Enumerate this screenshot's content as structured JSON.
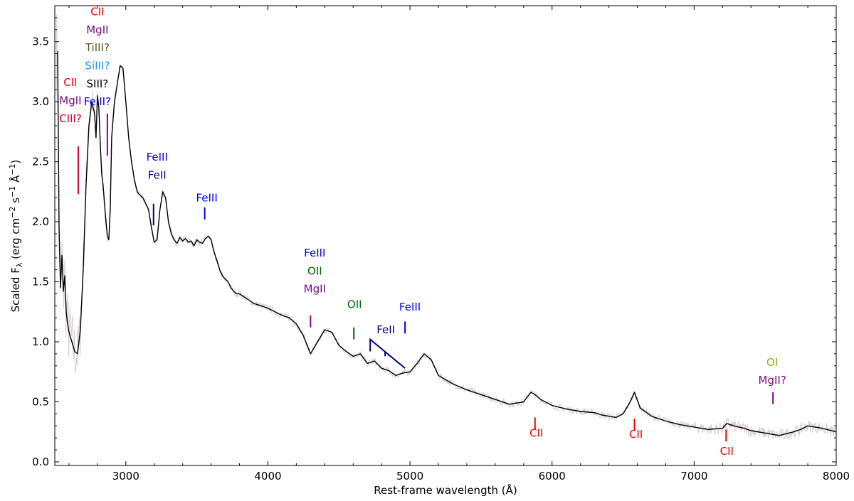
{
  "chart_data": {
    "type": "line",
    "title": "",
    "xlabel": "Rest-frame wavelength (Å)",
    "ylabel_main": "Scaled F",
    "ylabel_sub": "λ",
    "ylabel_units": " (erg cm",
    "ylabel_exp1": "−2",
    "ylabel_mid": " s",
    "ylabel_exp2": "−1",
    "ylabel_mid2": " Å",
    "ylabel_exp3": "−1",
    "ylabel_end": ")",
    "xlim": [
      2500,
      8000
    ],
    "ylim": [
      -0.03,
      3.8
    ],
    "xticks": [
      3000,
      4000,
      5000,
      6000,
      7000,
      8000
    ],
    "yticks": [
      0.0,
      0.5,
      1.0,
      1.5,
      2.0,
      2.5,
      3.0,
      3.5
    ],
    "grid": false,
    "series": [
      {
        "style": "smoothed",
        "color": "#000000",
        "x": [
          2520,
          2530,
          2540,
          2550,
          2560,
          2570,
          2580,
          2590,
          2600,
          2620,
          2640,
          2660,
          2680,
          2700,
          2720,
          2740,
          2760,
          2780,
          2790,
          2800,
          2810,
          2820,
          2830,
          2840,
          2850,
          2860,
          2870,
          2880,
          2890,
          2900,
          2920,
          2940,
          2960,
          2980,
          3000,
          3020,
          3040,
          3060,
          3080,
          3100,
          3120,
          3140,
          3160,
          3180,
          3200,
          3220,
          3240,
          3260,
          3280,
          3300,
          3320,
          3340,
          3360,
          3380,
          3400,
          3420,
          3440,
          3460,
          3480,
          3500,
          3520,
          3540,
          3560,
          3580,
          3600,
          3620,
          3640,
          3660,
          3680,
          3700,
          3720,
          3740,
          3760,
          3780,
          3800,
          3850,
          3900,
          3950,
          4000,
          4050,
          4100,
          4150,
          4200,
          4250,
          4300,
          4350,
          4400,
          4450,
          4500,
          4550,
          4600,
          4650,
          4700,
          4750,
          4800,
          4850,
          4900,
          4950,
          5000,
          5050,
          5100,
          5150,
          5200,
          5300,
          5400,
          5500,
          5600,
          5700,
          5800,
          5850,
          5880,
          5920,
          6000,
          6100,
          6200,
          6300,
          6350,
          6400,
          6450,
          6500,
          6550,
          6580,
          6620,
          6700,
          6800,
          6900,
          7000,
          7100,
          7200,
          7230,
          7280,
          7350,
          7400,
          7500,
          7600,
          7700,
          7750,
          7800,
          7900,
          8000
        ],
        "y": [
          3.42,
          1.95,
          1.45,
          1.72,
          1.42,
          1.55,
          1.25,
          1.15,
          1.08,
          1.0,
          0.92,
          0.9,
          1.1,
          1.6,
          2.3,
          2.8,
          3.0,
          2.9,
          2.7,
          3.05,
          2.95,
          2.65,
          2.4,
          2.3,
          2.15,
          2.0,
          1.88,
          1.85,
          2.1,
          2.7,
          3.0,
          3.15,
          3.3,
          3.28,
          3.0,
          2.7,
          2.5,
          2.35,
          2.25,
          2.22,
          2.2,
          2.15,
          2.1,
          1.95,
          1.83,
          1.85,
          2.1,
          2.25,
          2.2,
          2.0,
          1.9,
          1.85,
          1.82,
          1.87,
          1.84,
          1.86,
          1.83,
          1.84,
          1.8,
          1.85,
          1.83,
          1.82,
          1.86,
          1.88,
          1.85,
          1.75,
          1.68,
          1.6,
          1.55,
          1.52,
          1.5,
          1.45,
          1.42,
          1.4,
          1.4,
          1.36,
          1.32,
          1.3,
          1.28,
          1.25,
          1.22,
          1.2,
          1.15,
          1.05,
          0.9,
          1.0,
          1.1,
          1.08,
          0.97,
          0.92,
          0.88,
          0.9,
          0.82,
          0.84,
          0.78,
          0.76,
          0.72,
          0.74,
          0.75,
          0.82,
          0.9,
          0.85,
          0.72,
          0.65,
          0.6,
          0.56,
          0.52,
          0.48,
          0.5,
          0.58,
          0.56,
          0.52,
          0.47,
          0.44,
          0.42,
          0.41,
          0.39,
          0.38,
          0.37,
          0.4,
          0.5,
          0.58,
          0.45,
          0.38,
          0.34,
          0.31,
          0.29,
          0.27,
          0.28,
          0.32,
          0.3,
          0.28,
          0.26,
          0.24,
          0.22,
          0.25,
          0.27,
          0.3,
          0.28,
          0.25
        ]
      }
    ],
    "annotations": [
      {
        "text": "CII",
        "color": "#ee0000",
        "wl": 2610,
        "y": 3.13
      },
      {
        "text": "MgII",
        "color": "#7a0a80",
        "wl": 2610,
        "y": 2.98
      },
      {
        "text": "CIII?",
        "color": "#cc0033",
        "wl": 2610,
        "y": 2.83
      },
      {
        "text": "CII",
        "color": "#ee0000",
        "wl": 2800,
        "y": 3.72
      },
      {
        "text": "MgII",
        "color": "#7a0a80",
        "wl": 2800,
        "y": 3.57
      },
      {
        "text": "TiIII?",
        "color": "#555522",
        "wl": 2800,
        "y": 3.42
      },
      {
        "text": "SiIII?",
        "color": "#1e90ff",
        "wl": 2800,
        "y": 3.27
      },
      {
        "text": "SIII?",
        "color": "#000000",
        "wl": 2800,
        "y": 3.12
      },
      {
        "text": "FeIII?",
        "color": "#0000ee",
        "wl": 2800,
        "y": 2.97
      },
      {
        "text": "FeIII",
        "color": "#0000ee",
        "wl": 3220,
        "y": 2.51
      },
      {
        "text": "FeII",
        "color": "#000080",
        "wl": 3220,
        "y": 2.36
      },
      {
        "text": "FeIII",
        "color": "#0000ee",
        "wl": 3570,
        "y": 2.17
      },
      {
        "text": "FeIII",
        "color": "#0000ee",
        "wl": 4330,
        "y": 1.71
      },
      {
        "text": "OII",
        "color": "#006400",
        "wl": 4330,
        "y": 1.56
      },
      {
        "text": "MgII",
        "color": "#7a0a80",
        "wl": 4330,
        "y": 1.41
      },
      {
        "text": "OII",
        "color": "#006400",
        "wl": 4610,
        "y": 1.28
      },
      {
        "text": "FeII",
        "color": "#000080",
        "wl": 4830,
        "y": 1.07
      },
      {
        "text": "FeIII",
        "color": "#0000ee",
        "wl": 5000,
        "y": 1.26
      },
      {
        "text": "CII",
        "color": "#ee0000",
        "wl": 5890,
        "y": 0.21
      },
      {
        "text": "CII",
        "color": "#ee0000",
        "wl": 6590,
        "y": 0.2
      },
      {
        "text": "CII",
        "color": "#ee0000",
        "wl": 7230,
        "y": 0.06
      },
      {
        "text": "OI",
        "color": "#7fbf00",
        "wl": 7550,
        "y": 0.8
      },
      {
        "text": "MgII?",
        "color": "#7a0a80",
        "wl": 7550,
        "y": 0.65
      }
    ],
    "line_marks": [
      {
        "wl": 2665,
        "y0": 2.23,
        "y1": 2.63,
        "color": "#cc0033"
      },
      {
        "wl": 2870,
        "y0": 2.55,
        "y1": 2.9,
        "color": "#7a0a80"
      },
      {
        "wl": 3195,
        "y0": 1.97,
        "y1": 2.15,
        "color": "#000080"
      },
      {
        "wl": 3555,
        "y0": 2.02,
        "y1": 2.12,
        "color": "#0000ee"
      },
      {
        "wl": 4300,
        "y0": 1.12,
        "y1": 1.22,
        "color": "#7a0a80"
      },
      {
        "wl": 4605,
        "y0": 1.02,
        "y1": 1.12,
        "color": "#006400"
      },
      {
        "wl": 4965,
        "y0": 1.07,
        "y1": 1.17,
        "color": "#0000ee"
      },
      {
        "wl": 5880,
        "y0": 0.27,
        "y1": 0.37,
        "color": "#ee0000"
      },
      {
        "wl": 6580,
        "y0": 0.26,
        "y1": 0.36,
        "color": "#ee0000"
      },
      {
        "wl": 7225,
        "y0": 0.17,
        "y1": 0.27,
        "color": "#ee0000"
      },
      {
        "wl": 7555,
        "y0": 0.48,
        "y1": 0.58,
        "color": "#7a0a80"
      }
    ],
    "bracket": {
      "color": "#000080",
      "top_y": 1.02,
      "left_wl": 4720,
      "right_wl": 4965,
      "mid_wl": 4825,
      "left_y": 0.92,
      "mid_y": 0.88,
      "right_y": 0.78
    }
  }
}
